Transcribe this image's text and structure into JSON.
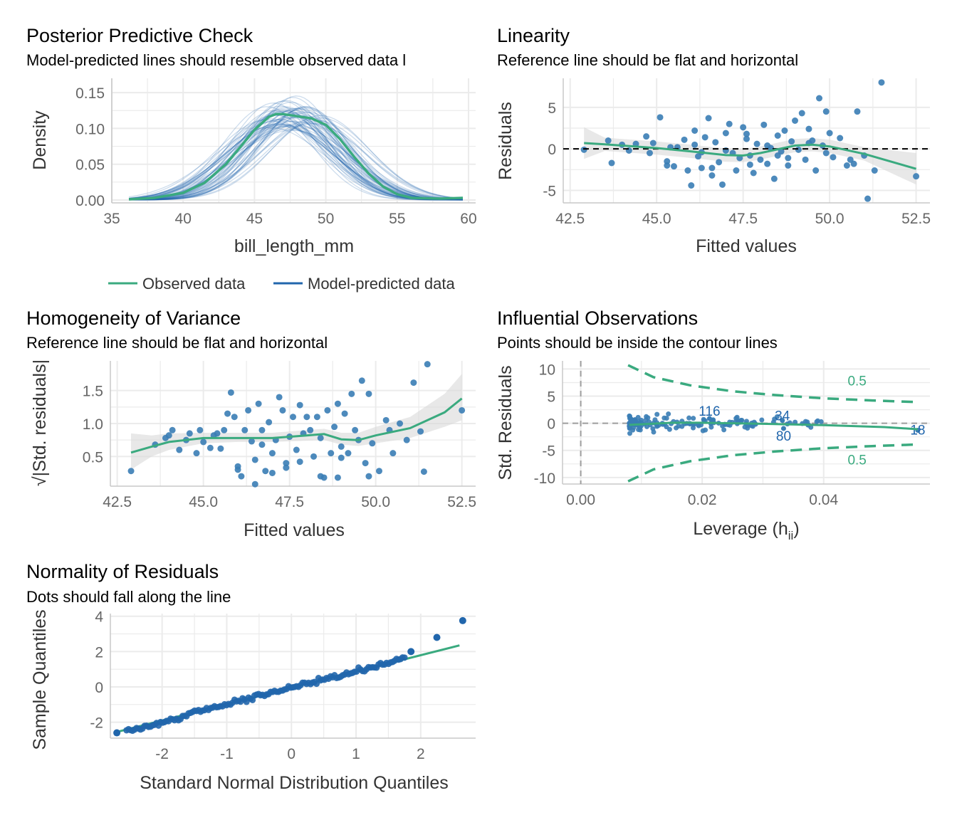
{
  "colors": {
    "observed": "#3aaa7f",
    "predicted": "#2166ac",
    "points": "#3a7db5",
    "band": "#d9d9d9",
    "grid": "#ebebeb",
    "reference": "#000000",
    "vline": "#9e9e9e"
  },
  "chart_data": [
    {
      "id": "ppc",
      "type": "line",
      "title": "Posterior Predictive Check",
      "subtitle": "Model-predicted lines should resemble observed data l",
      "xlabel": "bill_length_mm",
      "ylabel": "Density",
      "xlim": [
        35,
        60.5
      ],
      "ylim": [
        -0.004,
        0.17
      ],
      "xticks": [
        "35",
        "40",
        "45",
        "50",
        "55",
        "60"
      ],
      "yticks": [
        "0.00",
        "0.05",
        "0.10",
        "0.15"
      ],
      "grid": true,
      "legend": {
        "position": "bottom",
        "items": [
          {
            "name": "Observed data",
            "color": "#3aaa7f"
          },
          {
            "name": "Model-predicted data",
            "color": "#2166ac"
          }
        ]
      },
      "observed": {
        "x": [
          36.2,
          38,
          40,
          41.5,
          43,
          44,
          45,
          46,
          46.5,
          47,
          48,
          49,
          50,
          51,
          52,
          53,
          54,
          55,
          56,
          58,
          59.6
        ],
        "y": [
          0.001,
          0.003,
          0.01,
          0.024,
          0.05,
          0.074,
          0.098,
          0.116,
          0.12,
          0.12,
          0.117,
          0.114,
          0.105,
          0.085,
          0.06,
          0.037,
          0.019,
          0.008,
          0.003,
          0.002,
          0.003
        ]
      },
      "predicted_draws": 60,
      "predicted_mean": 47.3,
      "predicted_sd": 3.4
    },
    {
      "id": "linearity",
      "type": "scatter",
      "title": "Linearity",
      "subtitle": "Reference line should be flat and horizontal",
      "xlabel": "Fitted values",
      "ylabel": "Residuals",
      "xlim": [
        42.3,
        52.9
      ],
      "ylim": [
        -6.5,
        8.5
      ],
      "xticks": [
        "42.5",
        "45.0",
        "47.5",
        "50.0",
        "52.5"
      ],
      "yticks": [
        "-5",
        "0",
        "5"
      ],
      "grid": true,
      "reference": 0,
      "points": [
        [
          42.9,
          -0.1
        ],
        [
          43.6,
          1.0
        ],
        [
          43.7,
          -1.7
        ],
        [
          44.2,
          -0.2
        ],
        [
          44.4,
          0.6
        ],
        [
          44.7,
          1.5
        ],
        [
          44.9,
          0.7
        ],
        [
          45.1,
          3.8
        ],
        [
          45.3,
          -1.5
        ],
        [
          45.5,
          -2.1
        ],
        [
          45.6,
          0.2
        ],
        [
          45.8,
          1.1
        ],
        [
          45.9,
          -2.6
        ],
        [
          46.0,
          -4.4
        ],
        [
          46.1,
          2.2
        ],
        [
          46.2,
          -0.9
        ],
        [
          46.3,
          -2.3
        ],
        [
          46.4,
          1.4
        ],
        [
          46.5,
          3.7
        ],
        [
          46.6,
          -3.2
        ],
        [
          46.7,
          0.8
        ],
        [
          46.8,
          -1.6
        ],
        [
          46.9,
          -4.3
        ],
        [
          47.0,
          1.9
        ],
        [
          47.1,
          3.0
        ],
        [
          47.2,
          -0.5
        ],
        [
          47.3,
          -2.6
        ],
        [
          47.4,
          -1.1
        ],
        [
          47.5,
          2.6
        ],
        [
          47.6,
          1.2
        ],
        [
          47.7,
          -0.8
        ],
        [
          47.8,
          -2.9
        ],
        [
          47.9,
          0.6
        ],
        [
          48.0,
          -1.3
        ],
        [
          48.1,
          2.9
        ],
        [
          48.2,
          -1.8
        ],
        [
          48.3,
          0.1
        ],
        [
          48.4,
          -3.6
        ],
        [
          48.5,
          1.6
        ],
        [
          48.6,
          -0.3
        ],
        [
          48.7,
          2.2
        ],
        [
          48.8,
          -2.0
        ],
        [
          48.9,
          0.9
        ],
        [
          49.0,
          3.4
        ],
        [
          49.1,
          -0.1
        ],
        [
          49.2,
          4.3
        ],
        [
          49.3,
          -1.3
        ],
        [
          49.4,
          2.4
        ],
        [
          49.5,
          1.0
        ],
        [
          49.6,
          -2.6
        ],
        [
          49.7,
          6.1
        ],
        [
          49.8,
          0.4
        ],
        [
          49.9,
          4.5
        ],
        [
          50.1,
          -1.0
        ],
        [
          50.3,
          1.3
        ],
        [
          50.5,
          -2.0
        ],
        [
          50.7,
          -1.8
        ],
        [
          50.8,
          4.5
        ],
        [
          51.0,
          -0.8
        ],
        [
          51.1,
          -6.0
        ],
        [
          51.3,
          -2.6
        ],
        [
          51.5,
          8.0
        ],
        [
          52.5,
          -3.3
        ],
        [
          44.0,
          0.5
        ],
        [
          45.4,
          0.2
        ],
        [
          47.0,
          -0.2
        ],
        [
          48.5,
          -0.8
        ],
        [
          49.9,
          -0.5
        ],
        [
          46.6,
          -2.3
        ],
        [
          47.7,
          -1.9
        ],
        [
          48.8,
          -1.1
        ],
        [
          50.0,
          1.9
        ],
        [
          45.3,
          -2.0
        ],
        [
          46.1,
          0.5
        ],
        [
          47.6,
          1.8
        ],
        [
          49.4,
          0.7
        ],
        [
          50.6,
          -1.3
        ],
        [
          44.8,
          -0.5
        ],
        [
          46.3,
          -0.4
        ],
        [
          48.2,
          0.4
        ]
      ],
      "smooth": {
        "x": [
          42.9,
          43.5,
          44,
          45,
          46,
          47,
          47.5,
          48,
          49,
          49.5,
          50,
          51,
          52.5
        ],
        "y": [
          0.7,
          0.55,
          0.4,
          0.1,
          -0.3,
          -0.75,
          -0.8,
          -0.5,
          0.4,
          0.5,
          0.3,
          -0.6,
          -2.4
        ]
      }
    },
    {
      "id": "homogeneity",
      "type": "scatter",
      "title": "Homogeneity of Variance",
      "subtitle": "Reference line should be flat and horizontal",
      "xlabel": "Fitted values",
      "ylabel": "√|Std. residuals|",
      "xlim": [
        42.3,
        52.9
      ],
      "ylim": [
        0.05,
        1.95
      ],
      "xticks": [
        "42.5",
        "45.0",
        "47.5",
        "50.0",
        "52.5"
      ],
      "yticks": [
        "0.5",
        "1.0",
        "1.5"
      ],
      "grid": true,
      "points": [
        [
          42.9,
          0.28
        ],
        [
          43.6,
          0.68
        ],
        [
          43.9,
          0.78
        ],
        [
          44.0,
          0.82
        ],
        [
          44.1,
          0.9
        ],
        [
          44.3,
          0.6
        ],
        [
          44.6,
          0.85
        ],
        [
          44.8,
          0.55
        ],
        [
          44.9,
          0.9
        ],
        [
          45.0,
          0.72
        ],
        [
          45.2,
          0.63
        ],
        [
          45.4,
          0.85
        ],
        [
          45.6,
          0.9
        ],
        [
          45.7,
          1.15
        ],
        [
          45.8,
          1.47
        ],
        [
          45.9,
          1.1
        ],
        [
          46.0,
          0.3
        ],
        [
          46.1,
          0.2
        ],
        [
          46.2,
          0.9
        ],
        [
          46.3,
          1.2
        ],
        [
          46.4,
          0.73
        ],
        [
          46.5,
          0.45
        ],
        [
          46.6,
          1.3
        ],
        [
          46.7,
          0.9
        ],
        [
          46.8,
          0.28
        ],
        [
          46.9,
          1.02
        ],
        [
          47.0,
          0.55
        ],
        [
          47.1,
          0.75
        ],
        [
          47.2,
          1.4
        ],
        [
          47.3,
          1.2
        ],
        [
          47.4,
          0.4
        ],
        [
          47.5,
          0.8
        ],
        [
          47.6,
          1.1
        ],
        [
          47.7,
          0.6
        ],
        [
          47.8,
          1.28
        ],
        [
          47.9,
          0.85
        ],
        [
          48.0,
          1.1
        ],
        [
          48.1,
          0.9
        ],
        [
          48.2,
          0.5
        ],
        [
          48.3,
          1.1
        ],
        [
          48.4,
          0.78
        ],
        [
          48.5,
          0.18
        ],
        [
          48.6,
          1.2
        ],
        [
          48.7,
          0.55
        ],
        [
          48.8,
          0.95
        ],
        [
          48.9,
          1.3
        ],
        [
          49.0,
          0.65
        ],
        [
          49.1,
          1.15
        ],
        [
          49.2,
          0.55
        ],
        [
          49.3,
          1.45
        ],
        [
          49.4,
          0.9
        ],
        [
          49.5,
          0.75
        ],
        [
          49.6,
          1.65
        ],
        [
          49.7,
          0.4
        ],
        [
          49.8,
          1.45
        ],
        [
          49.9,
          0.7
        ],
        [
          50.1,
          0.28
        ],
        [
          50.3,
          1.05
        ],
        [
          50.5,
          0.55
        ],
        [
          50.7,
          1.0
        ],
        [
          50.9,
          0.75
        ],
        [
          51.1,
          1.62
        ],
        [
          51.3,
          0.88
        ],
        [
          51.4,
          0.27
        ],
        [
          51.5,
          1.9
        ],
        [
          52.5,
          1.2
        ],
        [
          44.5,
          0.75
        ],
        [
          45.3,
          0.82
        ],
        [
          46.0,
          0.35
        ],
        [
          47.0,
          0.25
        ],
        [
          47.8,
          0.42
        ],
        [
          48.4,
          0.2
        ],
        [
          49.0,
          0.48
        ],
        [
          49.8,
          0.2
        ],
        [
          50.4,
          0.9
        ],
        [
          46.5,
          0.08
        ],
        [
          47.4,
          0.33
        ],
        [
          48.9,
          0.18
        ],
        [
          45.5,
          0.62
        ],
        [
          46.7,
          0.68
        ]
      ],
      "smooth": {
        "x": [
          42.9,
          43.5,
          44,
          45,
          46,
          47,
          48,
          48.5,
          49,
          49.5,
          50,
          51,
          52,
          52.5
        ],
        "y": [
          0.56,
          0.65,
          0.72,
          0.78,
          0.78,
          0.78,
          0.82,
          0.84,
          0.76,
          0.75,
          0.82,
          0.93,
          1.17,
          1.38
        ]
      },
      "band": {
        "x": [
          42.9,
          43.5,
          44,
          45,
          46,
          47,
          48,
          48.5,
          49,
          49.5,
          50,
          51,
          52,
          52.5
        ],
        "lower": [
          0.3,
          0.5,
          0.6,
          0.7,
          0.72,
          0.72,
          0.74,
          0.75,
          0.68,
          0.66,
          0.7,
          0.78,
          0.95,
          1.05
        ],
        "upper": [
          0.85,
          0.82,
          0.85,
          0.86,
          0.86,
          0.86,
          0.9,
          0.92,
          0.86,
          0.86,
          0.95,
          1.1,
          1.45,
          1.75
        ]
      }
    },
    {
      "id": "influential",
      "type": "scatter",
      "title": "Influential Observations",
      "subtitle": "Points should be inside the contour lines",
      "xlabel": "Leverage (h",
      "xlabel_sub": "ii",
      "xlabel_end": ")",
      "ylabel": "Std. Residuals",
      "xlim": [
        -0.003,
        0.0575
      ],
      "ylim": [
        -11.2,
        11.5
      ],
      "xticks": [
        "0.00",
        "0.02",
        "0.04"
      ],
      "yticks": [
        "-10",
        "-5",
        "0",
        "5",
        "10"
      ],
      "grid": true,
      "contour_label": "0.5",
      "contour_upper": {
        "x": [
          0.0078,
          0.012,
          0.018,
          0.025,
          0.032,
          0.04,
          0.048,
          0.0555
        ],
        "y": [
          10.7,
          8.5,
          7.0,
          5.9,
          5.2,
          4.6,
          4.2,
          3.9
        ]
      },
      "labeled_points": [
        {
          "label": "116",
          "x": 0.0212,
          "y": 2.2
        },
        {
          "label": "34",
          "x": 0.0332,
          "y": 1.3
        },
        {
          "label": "80",
          "x": 0.0334,
          "y": -2.4
        },
        {
          "label": "18",
          "x": 0.0555,
          "y": -1.3
        }
      ],
      "smooth": {
        "x": [
          0.008,
          0.015,
          0.02,
          0.03,
          0.04,
          0.05,
          0.0555
        ],
        "y": [
          -0.3,
          0.1,
          0.1,
          -0.1,
          -0.35,
          -0.7,
          -1.1
        ]
      }
    },
    {
      "id": "normality",
      "type": "scatter",
      "title": "Normality of Residuals",
      "subtitle": "Dots should fall along the line",
      "xlabel": "Standard Normal Distribution Quantiles",
      "ylabel": "Sample Quantiles",
      "xlim": [
        -2.8,
        2.85
      ],
      "ylim": [
        -2.9,
        4.15
      ],
      "xticks": [
        "-2",
        "-1",
        "0",
        "1",
        "2"
      ],
      "yticks": [
        "-2",
        "0",
        "2",
        "4"
      ],
      "grid": true,
      "line": {
        "x": [
          -2.7,
          2.6
        ],
        "y": [
          -2.55,
          2.35
        ]
      },
      "extreme_points": [
        [
          -2.7,
          -2.6
        ],
        [
          2.25,
          2.8
        ],
        [
          2.65,
          3.75
        ],
        [
          1.85,
          2.0
        ]
      ],
      "n_points": 140
    }
  ]
}
